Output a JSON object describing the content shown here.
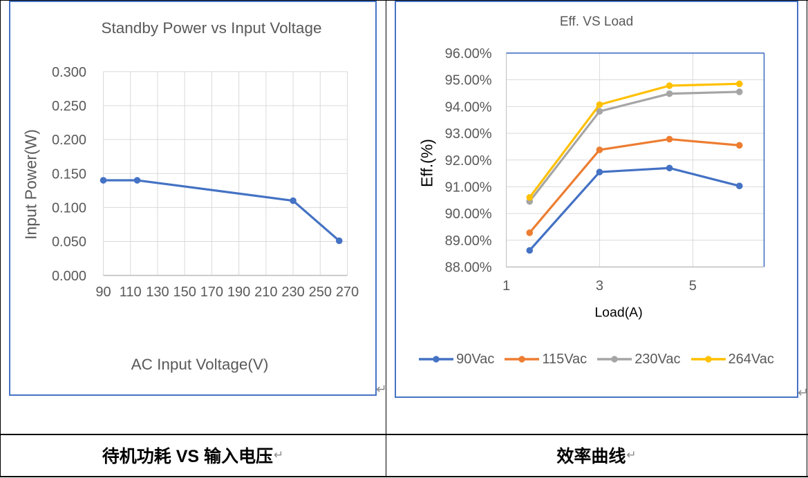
{
  "document": {
    "table_border_color": "#000000",
    "chart_frame_color": "#4472C4",
    "paragraph_mark": "↵",
    "captions": [
      {
        "text": "待机功耗 VS 输入电压",
        "mark": "↵"
      },
      {
        "text": "效率曲线",
        "mark": "↵"
      }
    ]
  },
  "chart_data": [
    {
      "type": "line",
      "title": "Standby Power vs Input Voltage",
      "xlabel": "AC Input Voltage(V)",
      "ylabel": "Input Power(W)",
      "title_color": "#595959",
      "axis_title_color": "#595959",
      "tick_color": "#595959",
      "grid": true,
      "gridline_color": "#D9D9D9",
      "axis_line_color": "#BFBFBF",
      "legend_position": "none",
      "xlim": [
        90,
        270
      ],
      "ylim": [
        0,
        0.3
      ],
      "xticks": {
        "values": [
          90,
          110,
          130,
          150,
          170,
          190,
          210,
          230,
          250,
          270
        ],
        "labels": [
          "90",
          "110",
          "130",
          "150",
          "170",
          "190",
          "210",
          "230",
          "250",
          "270"
        ]
      },
      "yticks": {
        "values": [
          0.3,
          0.25,
          0.2,
          0.15,
          0.1,
          0.05,
          0
        ],
        "labels": [
          "0.300",
          "0.250",
          "0.200",
          "0.150",
          "0.100",
          "0.050",
          "0.000"
        ]
      },
      "x": [
        90,
        115,
        230,
        264
      ],
      "series": [
        {
          "name": "Standby Power",
          "color": "#4472C4",
          "values": [
            0.14,
            0.14,
            0.11,
            0.051
          ]
        }
      ]
    },
    {
      "type": "line",
      "title": "Eff. VS Load",
      "xlabel": "Load(A)",
      "ylabel": "Eff.(%)",
      "title_color": "#595959",
      "axis_title_color": "#000000",
      "tick_color": "#595959",
      "grid": true,
      "gridline_color": "#D9D9D9",
      "axis_line_color": "#BFBFBF",
      "plot_border_color": "#4472C4",
      "legend_position": "bottom",
      "xlim": [
        1,
        6.53
      ],
      "ylim": [
        88,
        96
      ],
      "xticks": {
        "values": [
          1,
          3,
          5
        ],
        "labels": [
          "1",
          "3",
          "5"
        ]
      },
      "yticks": {
        "values": [
          96,
          95,
          94,
          93,
          92,
          91,
          90,
          89,
          88
        ],
        "labels": [
          "96.00%",
          "95.00%",
          "94.00%",
          "93.00%",
          "92.00%",
          "91.00%",
          "90.00%",
          "89.00%",
          "88.00%"
        ]
      },
      "x": [
        1.5,
        3,
        4.5,
        6
      ],
      "series": [
        {
          "name": "90Vac",
          "color": "#4472C4",
          "values": [
            88.62,
            91.55,
            91.7,
            91.03
          ]
        },
        {
          "name": "115Vac",
          "color": "#ED7D31",
          "values": [
            89.28,
            92.38,
            92.78,
            92.55
          ]
        },
        {
          "name": "230Vac",
          "color": "#A5A5A5",
          "values": [
            90.45,
            93.82,
            94.48,
            94.55
          ]
        },
        {
          "name": "264Vac",
          "color": "#FFC000",
          "values": [
            90.6,
            94.07,
            94.78,
            94.85
          ]
        }
      ]
    }
  ]
}
